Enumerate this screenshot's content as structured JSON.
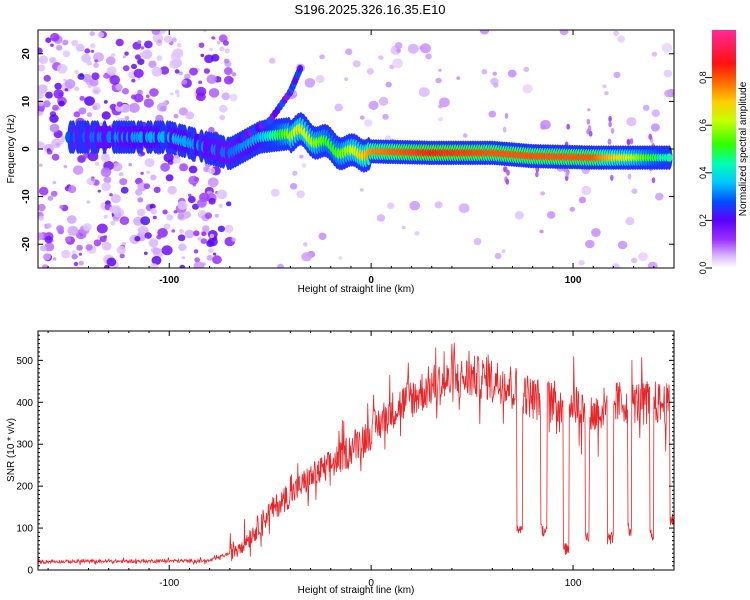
{
  "title": "S196.2025.326.16.35.E10",
  "chart_data": [
    {
      "type": "heatmap",
      "xlabel": "Height of straight line (km)",
      "ylabel": "Frequency (Hz)",
      "xlim": [
        -165,
        150
      ],
      "ylim": [
        -25,
        25
      ],
      "xticks": [
        -100,
        0,
        100
      ],
      "yticks": [
        -20,
        -10,
        0,
        10,
        20
      ],
      "colorbar": {
        "label": "Normalized spectral amplitude",
        "range": [
          0,
          1
        ],
        "ticks": [
          0.0,
          0.2,
          0.4,
          0.6,
          0.8
        ],
        "colormap": "rainbow (white-purple-blue-cyan-green-yellow-red-magenta)"
      },
      "signal_ridge": {
        "description_points": [
          {
            "x": -140,
            "y": 2.5,
            "amp": 0.3
          },
          {
            "x": -100,
            "y": 2.5,
            "amp": 0.35
          },
          {
            "x": -70,
            "y": -1.0,
            "amp": 0.3
          },
          {
            "x": -55,
            "y": 2.5,
            "amp": 0.35
          },
          {
            "x": -35,
            "y": 3.5,
            "amp": 0.65
          },
          {
            "x": -20,
            "y": 0.5,
            "amp": 0.5
          },
          {
            "x": -10,
            "y": -1.0,
            "amp": 0.6
          },
          {
            "x": 0,
            "y": -0.5,
            "amp": 0.75
          },
          {
            "x": 30,
            "y": -0.8,
            "amp": 0.85
          },
          {
            "x": 60,
            "y": -0.8,
            "amp": 0.8
          },
          {
            "x": 80,
            "y": -1.5,
            "amp": 0.8
          },
          {
            "x": 110,
            "y": -1.8,
            "amp": 0.8
          },
          {
            "x": 145,
            "y": -1.8,
            "amp": 0.45
          }
        ],
        "branch_upper": [
          {
            "x": -65,
            "y": 2.0
          },
          {
            "x": -50,
            "y": 6.0
          },
          {
            "x": -40,
            "y": 12.0
          },
          {
            "x": -35,
            "y": 17.0
          }
        ]
      }
    },
    {
      "type": "line",
      "xlabel": "Height of straight line (km)",
      "ylabel": "SNR (10 * v/v)",
      "xlim": [
        -165,
        150
      ],
      "ylim": [
        0,
        570
      ],
      "xticks": [
        -100,
        0,
        100
      ],
      "yticks": [
        0,
        100,
        200,
        300,
        400,
        500
      ],
      "series": [
        {
          "color": "#e8262a",
          "envelope": [
            {
              "x": -165,
              "y": 20
            },
            {
              "x": -80,
              "y": 22
            },
            {
              "x": -70,
              "y": 40
            },
            {
              "x": -60,
              "y": 80
            },
            {
              "x": -50,
              "y": 140
            },
            {
              "x": -40,
              "y": 180
            },
            {
              "x": -30,
              "y": 220
            },
            {
              "x": -20,
              "y": 250
            },
            {
              "x": -10,
              "y": 290
            },
            {
              "x": 0,
              "y": 330
            },
            {
              "x": 10,
              "y": 380
            },
            {
              "x": 20,
              "y": 410
            },
            {
              "x": 30,
              "y": 440
            },
            {
              "x": 40,
              "y": 450
            },
            {
              "x": 50,
              "y": 460
            },
            {
              "x": 60,
              "y": 455
            },
            {
              "x": 70,
              "y": 440
            },
            {
              "x": 80,
              "y": 410
            },
            {
              "x": 90,
              "y": 400
            },
            {
              "x": 100,
              "y": 400
            },
            {
              "x": 110,
              "y": 370
            },
            {
              "x": 120,
              "y": 400
            },
            {
              "x": 130,
              "y": 400
            },
            {
              "x": 140,
              "y": 400
            },
            {
              "x": 150,
              "y": 390
            }
          ],
          "dropouts": [
            {
              "x0": 72,
              "x1": 75,
              "y": 100
            },
            {
              "x0": 84,
              "x1": 87,
              "y": 95
            },
            {
              "x0": 95,
              "x1": 98,
              "y": 50
            },
            {
              "x0": 106,
              "x1": 108,
              "y": 75
            },
            {
              "x0": 117,
              "x1": 120,
              "y": 75
            },
            {
              "x0": 127,
              "x1": 129,
              "y": 95
            },
            {
              "x0": 138,
              "x1": 140,
              "y": 85
            },
            {
              "x0": 148,
              "x1": 150,
              "y": 120
            }
          ]
        }
      ]
    }
  ]
}
